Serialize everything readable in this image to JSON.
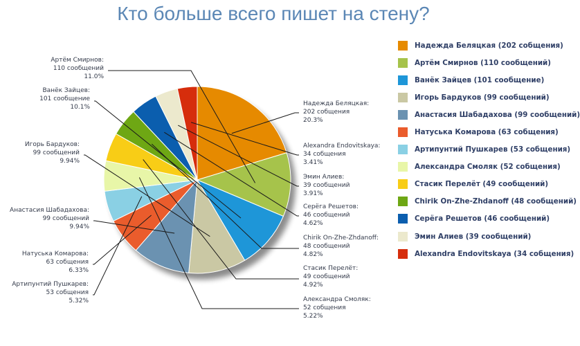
{
  "page": {
    "title": "Кто больше всего пишет на стену?"
  },
  "chart_data": {
    "type": "pie",
    "title": "Кто больше всего пишет на стену?",
    "legend_position": "right",
    "slices": [
      {
        "name": "Надежда Беляцкая",
        "count_text": "202 собщения",
        "value": 202,
        "percent": "20.3%",
        "color": "#e68a00",
        "legend": "Надежда Беляцкая (202 собщения)"
      },
      {
        "name": "Артём Смирнов",
        "count_text": "110 сообщений",
        "value": 110,
        "percent": "11.0%",
        "color": "#a6c34b",
        "legend": "Артём Смирнов (110 сообщений)"
      },
      {
        "name": "Ванёк Зайцев",
        "count_text": "101 сообщение",
        "value": 101,
        "percent": "10.1%",
        "color": "#1e96d8",
        "legend": "Ванёк Зайцев (101 сообщение)"
      },
      {
        "name": "Игорь Бардуков",
        "count_text": "99 сообщений",
        "value": 99,
        "percent": "9.94%",
        "color": "#cac8a4",
        "legend": "Игорь Бардуков (99 сообщений)"
      },
      {
        "name": "Анастасия Шабадахова",
        "count_text": "99 сообщений",
        "value": 99,
        "percent": "9.94%",
        "color": "#6b92b1",
        "legend": "Анастасия Шабадахова (99 сообщений)"
      },
      {
        "name": "Натуська Комарова",
        "count_text": "63 собщения",
        "value": 63,
        "percent": "6.33%",
        "color": "#ea5c2c",
        "legend": "Натуська Комарова (63 собщения)"
      },
      {
        "name": "Артипунтий Пушкарев",
        "count_text": "53 собщения",
        "value": 53,
        "percent": "5.32%",
        "color": "#8ad0e4",
        "legend": "Артипунтий Пушкарев (53 собщения)"
      },
      {
        "name": "Александра Смоляк",
        "count_text": "52 собщения",
        "value": 52,
        "percent": "5.22%",
        "color": "#e8f6a8",
        "legend": "Александра Смоляк (52 собщения)"
      },
      {
        "name": "Стасик Перелёт",
        "count_text": "49 сообщений",
        "value": 49,
        "percent": "4.92%",
        "color": "#f8cd16",
        "legend": "Стасик Перелёт (49 сообщений)"
      },
      {
        "name": "Chirik On-Zhe-Zhdanoff",
        "count_text": "48 сообщений",
        "value": 48,
        "percent": "4.82%",
        "color": "#6ea714",
        "legend": "Chirik On-Zhe-Zhdanoff (48 сообщений)"
      },
      {
        "name": "Серёга Решетов",
        "count_text": "46 сообщений",
        "value": 46,
        "percent": "4.62%",
        "color": "#0b5eae",
        "legend": "Серёга Решетов (46 сообщений)"
      },
      {
        "name": "Эмин Алиев",
        "count_text": "39 сообщений",
        "value": 39,
        "percent": "3.91%",
        "color": "#ece9cd",
        "legend": "Эмин Алиев (39 сообщений)"
      },
      {
        "name": "Alexandra Endovitskaya",
        "count_text": "34 собщения",
        "value": 34,
        "percent": "3.41%",
        "color": "#d62d0c",
        "legend": "Alexandra Endovitskaya (34 собщения)"
      }
    ]
  }
}
